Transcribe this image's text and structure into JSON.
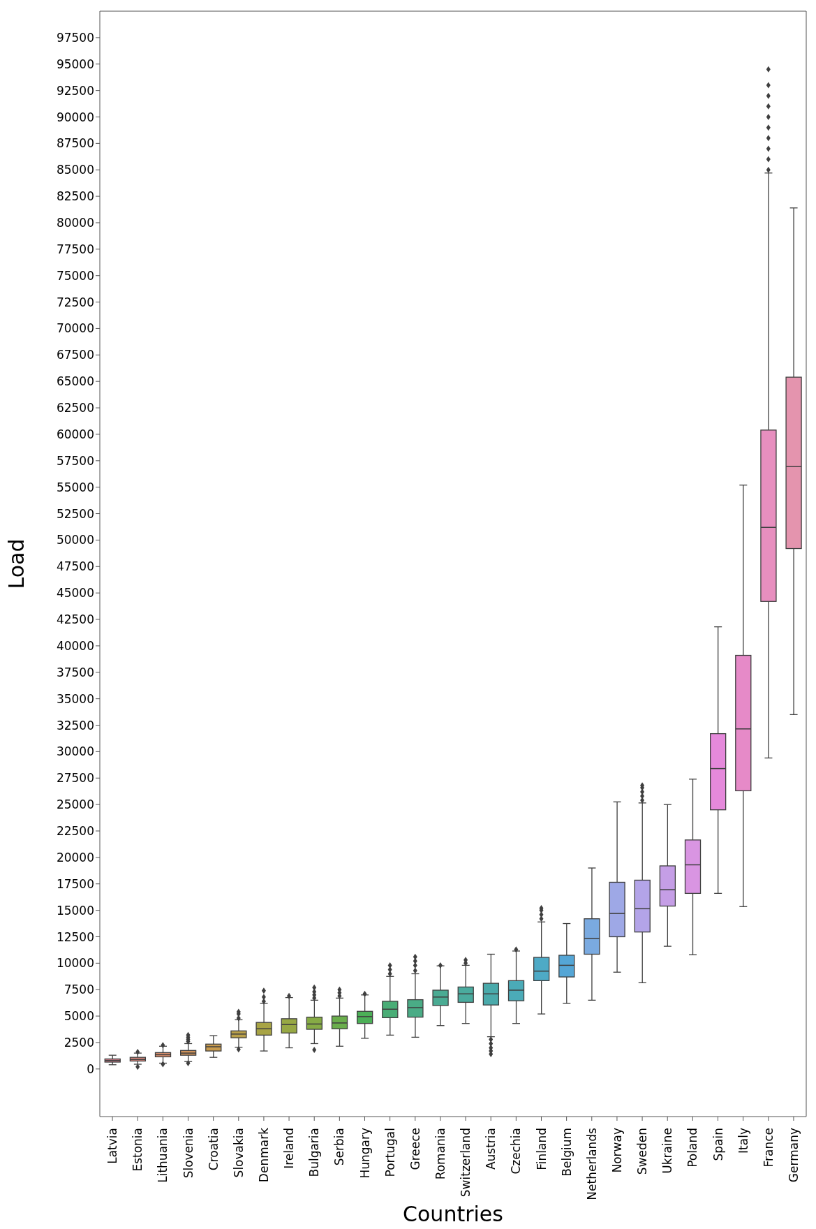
{
  "chart_data": {
    "type": "box",
    "xlabel": "Countries",
    "ylabel": "Load",
    "categories": [
      "Latvia",
      "Estonia",
      "Lithuania",
      "Slovenia",
      "Croatia",
      "Slovakia",
      "Denmark",
      "Ireland",
      "Bulgaria",
      "Serbia",
      "Hungary",
      "Portugal",
      "Greece",
      "Romania",
      "Switzerland",
      "Austria",
      "Czechia",
      "Finland",
      "Belgium",
      "Netherlands",
      "Norway",
      "Sweden",
      "Ukraine",
      "Poland",
      "Spain",
      "Italy",
      "France",
      "Germany"
    ],
    "colors": [
      "#d9838f",
      "#d8877c",
      "#d68c6a",
      "#d0935a",
      "#c89b4e",
      "#b9a04a",
      "#a8a445",
      "#97a844",
      "#86ab45",
      "#6aae4c",
      "#4caf57",
      "#49ad76",
      "#4aac86",
      "#4aab93",
      "#4aab9e",
      "#4aaaab",
      "#4babb8",
      "#4eaac6",
      "#55a6d6",
      "#7aaae0",
      "#9ea8e6",
      "#b3a4e8",
      "#c59ee6",
      "#d995e2",
      "#e589db",
      "#e68ac8",
      "#e78fbf",
      "#e494ae"
    ],
    "boxes": [
      {
        "low": 400,
        "q1": 650,
        "median": 800,
        "q3": 950,
        "high": 1300
      },
      {
        "low": 450,
        "q1": 750,
        "median": 900,
        "q3": 1100,
        "high": 1500,
        "outliers": [
          200,
          1600
        ]
      },
      {
        "low": 550,
        "q1": 1150,
        "median": 1350,
        "q3": 1550,
        "high": 2150,
        "outliers": [
          450,
          2250
        ]
      },
      {
        "low": 700,
        "q1": 1300,
        "median": 1500,
        "q3": 1750,
        "high": 2400,
        "outliers": [
          550,
          2600,
          2800,
          3000,
          3200
        ]
      },
      {
        "low": 1100,
        "q1": 1700,
        "median": 2100,
        "q3": 2350,
        "high": 3150
      },
      {
        "low": 2050,
        "q1": 2950,
        "median": 3300,
        "q3": 3600,
        "high": 4650,
        "outliers": [
          1850,
          4800,
          5200,
          5400
        ]
      },
      {
        "low": 1700,
        "q1": 3200,
        "median": 3800,
        "q3": 4400,
        "high": 6200,
        "outliers": [
          6400,
          6800,
          7400
        ]
      },
      {
        "low": 2000,
        "q1": 3400,
        "median": 4200,
        "q3": 4750,
        "high": 6750,
        "outliers": [
          6900
        ]
      },
      {
        "low": 2400,
        "q1": 3750,
        "median": 4250,
        "q3": 4900,
        "high": 6500,
        "outliers": [
          1800,
          6700,
          7000,
          7300,
          7700
        ]
      },
      {
        "low": 2150,
        "q1": 3800,
        "median": 4350,
        "q3": 5000,
        "high": 6700,
        "outliers": [
          6900,
          7200,
          7500
        ]
      },
      {
        "low": 2900,
        "q1": 4300,
        "median": 4950,
        "q3": 5450,
        "high": 7000,
        "outliers": [
          7100
        ]
      },
      {
        "low": 3200,
        "q1": 4850,
        "median": 5650,
        "q3": 6400,
        "high": 8750,
        "outliers": [
          9000,
          9400,
          9800
        ]
      },
      {
        "low": 3000,
        "q1": 4900,
        "median": 5800,
        "q3": 6550,
        "high": 9000,
        "outliers": [
          9300,
          9800,
          10200,
          10600
        ]
      },
      {
        "low": 4100,
        "q1": 6000,
        "median": 6800,
        "q3": 7450,
        "high": 9750,
        "outliers": [
          9800
        ]
      },
      {
        "low": 4300,
        "q1": 6300,
        "median": 7100,
        "q3": 7750,
        "high": 9800,
        "outliers": [
          10000,
          10300
        ]
      },
      {
        "low": 3050,
        "q1": 6050,
        "median": 7100,
        "q3": 8100,
        "high": 10850,
        "outliers": [
          2800,
          2400,
          2000,
          1700,
          1400
        ]
      },
      {
        "low": 4300,
        "q1": 6450,
        "median": 7450,
        "q3": 8350,
        "high": 11150,
        "outliers": [
          11300
        ]
      },
      {
        "low": 5200,
        "q1": 8350,
        "median": 9250,
        "q3": 10550,
        "high": 13900,
        "outliers": [
          14200,
          14600,
          15000,
          15200
        ]
      },
      {
        "low": 6200,
        "q1": 8700,
        "median": 9800,
        "q3": 10750,
        "high": 13750
      },
      {
        "low": 6500,
        "q1": 10850,
        "median": 12350,
        "q3": 14200,
        "high": 19000
      },
      {
        "low": 9150,
        "q1": 12500,
        "median": 14700,
        "q3": 17650,
        "high": 25250
      },
      {
        "low": 8150,
        "q1": 12950,
        "median": 15150,
        "q3": 17850,
        "high": 25150,
        "outliers": [
          25400,
          25800,
          26200,
          26600,
          26800
        ]
      },
      {
        "low": 11600,
        "q1": 15400,
        "median": 16950,
        "q3": 19200,
        "high": 25000
      },
      {
        "low": 10800,
        "q1": 16600,
        "median": 19300,
        "q3": 21650,
        "high": 27400
      },
      {
        "low": 16600,
        "q1": 24500,
        "median": 28400,
        "q3": 31700,
        "high": 41800
      },
      {
        "low": 15350,
        "q1": 26300,
        "median": 32150,
        "q3": 39100,
        "high": 55200
      },
      {
        "low": 29400,
        "q1": 44200,
        "median": 51200,
        "q3": 60400,
        "high": 84700,
        "outliers": [
          85000,
          86000,
          87000,
          88000,
          89000,
          90000,
          91000,
          92000,
          93000,
          94500
        ]
      },
      {
        "low": 33500,
        "q1": 49200,
        "median": 56950,
        "q3": 65400,
        "high": 81400
      }
    ],
    "ylim": [
      -4500,
      100000
    ],
    "yticks": [
      0,
      2500,
      5000,
      7500,
      10000,
      12500,
      15000,
      17500,
      20000,
      22500,
      25000,
      27500,
      30000,
      32500,
      35000,
      37500,
      40000,
      42500,
      45000,
      47500,
      50000,
      52500,
      55000,
      57500,
      60000,
      62500,
      65000,
      67500,
      70000,
      72500,
      75000,
      77500,
      80000,
      82500,
      85000,
      87500,
      90000,
      92500,
      95000,
      97500
    ],
    "grid": false,
    "legend": false
  }
}
